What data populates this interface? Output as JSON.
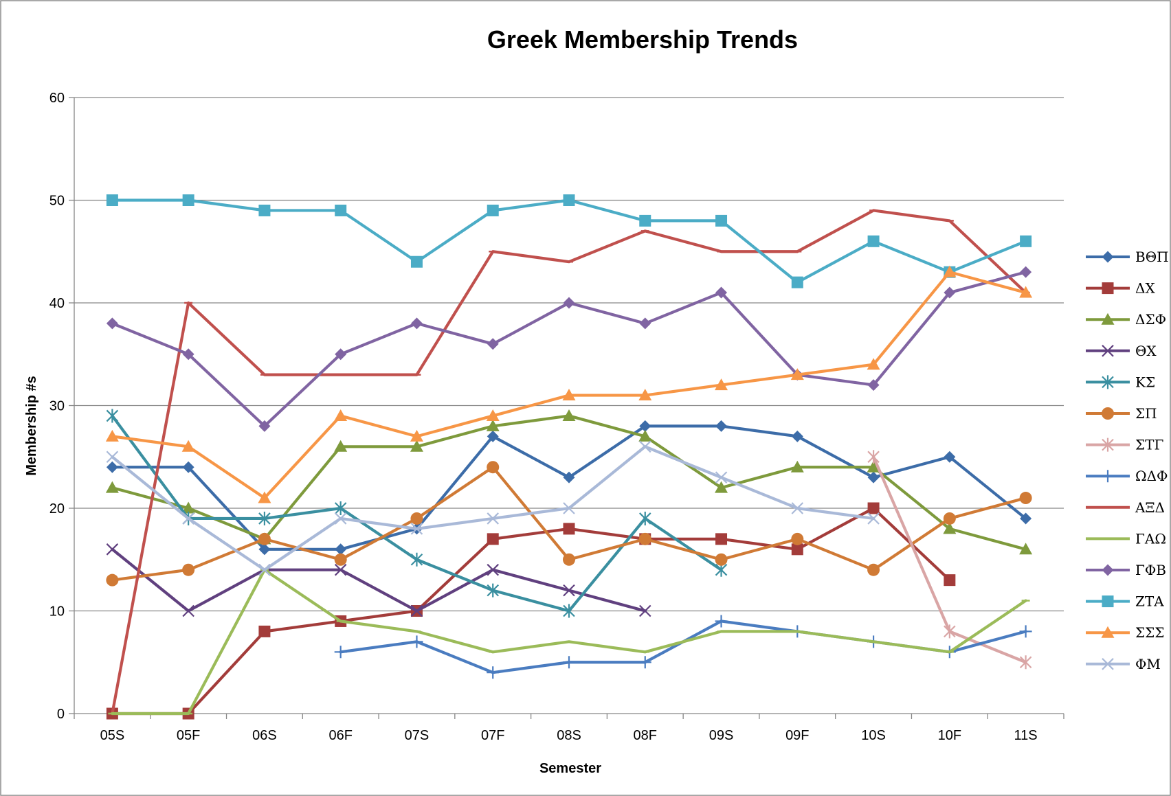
{
  "chart_data": {
    "type": "line",
    "title": "Greek Membership Trends",
    "xlabel": "Semester",
    "ylabel": "Membership #s",
    "ylim": [
      0,
      60
    ],
    "yticks": [
      0,
      10,
      20,
      30,
      40,
      50,
      60
    ],
    "grid": "horizontal",
    "legend": "right",
    "categories": [
      "05S",
      "05F",
      "06S",
      "06F",
      "07S",
      "07F",
      "08S",
      "08F",
      "09S",
      "09F",
      "10S",
      "10F",
      "11S"
    ],
    "series": [
      {
        "name": "ΒΘΠ",
        "color": "#3C6CA8",
        "marker": "diamond",
        "values": [
          24,
          24,
          16,
          16,
          18,
          27,
          23,
          28,
          28,
          27,
          23,
          25,
          19
        ]
      },
      {
        "name": "ΔΧ",
        "color": "#A33C3A",
        "marker": "square",
        "values": [
          0,
          0,
          8,
          9,
          10,
          17,
          18,
          17,
          17,
          16,
          20,
          13,
          null
        ]
      },
      {
        "name": "ΔΣΦ",
        "color": "#7E9A3C",
        "marker": "triangle",
        "values": [
          22,
          20,
          17,
          26,
          26,
          28,
          29,
          27,
          22,
          24,
          24,
          18,
          16
        ]
      },
      {
        "name": "ΘΧ",
        "color": "#60407F",
        "marker": "x",
        "values": [
          16,
          10,
          14,
          14,
          10,
          14,
          12,
          10,
          null,
          null,
          null,
          null,
          null
        ]
      },
      {
        "name": "ΚΣ",
        "color": "#3A8FA0",
        "marker": "asterisk",
        "values": [
          29,
          19,
          19,
          20,
          15,
          12,
          10,
          19,
          14,
          null,
          null,
          null,
          null
        ]
      },
      {
        "name": "ΣΠ",
        "color": "#D07A35",
        "marker": "circle",
        "values": [
          13,
          14,
          17,
          15,
          19,
          24,
          15,
          17,
          15,
          17,
          14,
          19,
          21
        ]
      },
      {
        "name": "ΣΤΓ",
        "color": "#D9A5A5",
        "marker": "asterisk",
        "values": [
          null,
          null,
          null,
          null,
          null,
          null,
          null,
          null,
          null,
          null,
          25,
          8,
          5
        ]
      },
      {
        "name": "ΩΔΦ",
        "color": "#4A7CC0",
        "marker": "plus",
        "values": [
          null,
          null,
          null,
          6,
          7,
          4,
          5,
          5,
          9,
          8,
          7,
          6,
          8
        ]
      },
      {
        "name": "ΑΞΔ",
        "color": "#C0504D",
        "marker": "dash",
        "values": [
          0,
          40,
          33,
          33,
          33,
          45,
          44,
          47,
          45,
          45,
          49,
          48,
          41
        ]
      },
      {
        "name": "ΓΑΩ",
        "color": "#9BBB59",
        "marker": "dash",
        "values": [
          0,
          0,
          14,
          9,
          8,
          6,
          7,
          6,
          8,
          8,
          7,
          6,
          11
        ]
      },
      {
        "name": "ΓΦΒ",
        "color": "#8064A2",
        "marker": "diamond",
        "values": [
          38,
          35,
          28,
          35,
          38,
          36,
          40,
          38,
          41,
          33,
          32,
          41,
          43
        ]
      },
      {
        "name": "ΖΤΑ",
        "color": "#4BACC6",
        "marker": "square",
        "values": [
          50,
          50,
          49,
          49,
          44,
          49,
          50,
          48,
          48,
          42,
          46,
          43,
          46
        ]
      },
      {
        "name": "ΣΣΣ",
        "color": "#F79646",
        "marker": "triangle",
        "values": [
          27,
          26,
          21,
          29,
          27,
          29,
          31,
          31,
          32,
          33,
          34,
          43,
          41
        ]
      },
      {
        "name": "ΦΜ",
        "color": "#A9B9D8",
        "marker": "x",
        "values": [
          25,
          19,
          14,
          19,
          18,
          19,
          20,
          26,
          23,
          20,
          19,
          null,
          null
        ]
      }
    ]
  }
}
